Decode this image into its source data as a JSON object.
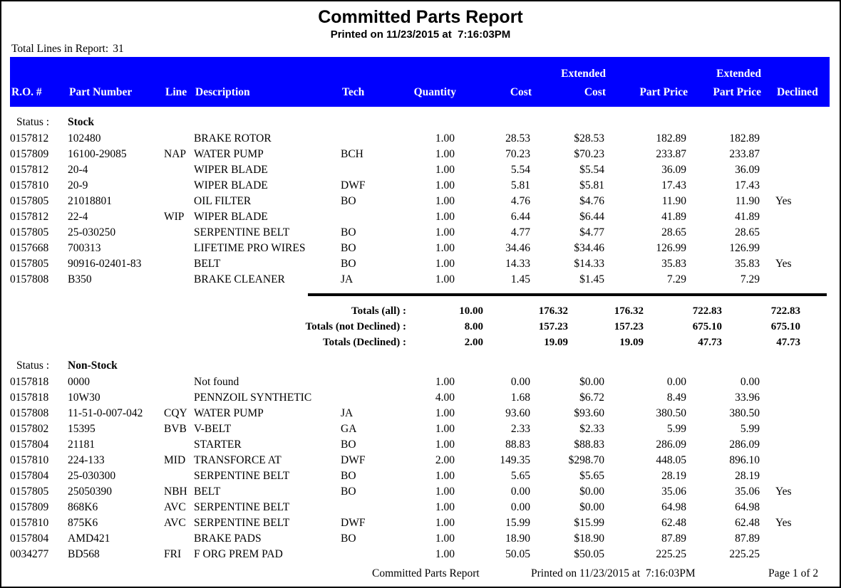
{
  "header": {
    "title": "Committed Parts Report",
    "printed": "Printed on 11/23/2015 at  7:16:03PM",
    "total_lines_label": "Total Lines in Report:",
    "total_lines_value": "31"
  },
  "colors": {
    "header_bar": "#0000ff",
    "header_text": "#ffffff"
  },
  "columns": {
    "extended": "Extended",
    "ro": "R.O. #",
    "part": "Part Number",
    "line": "Line",
    "desc": "Description",
    "tech": "Tech",
    "qty": "Quantity",
    "cost": "Cost",
    "ext_cost": "Cost",
    "price": "Part Price",
    "ext_price": "Part Price",
    "declined": "Declined"
  },
  "sections": [
    {
      "status_label": "Status :",
      "status": "Stock",
      "rows": [
        [
          "0157812",
          "102480",
          "",
          "BRAKE ROTOR",
          "",
          "1.00",
          "28.53",
          "$28.53",
          "182.89",
          "182.89",
          ""
        ],
        [
          "0157809",
          "16100-29085",
          "NAP",
          "WATER PUMP",
          "BCH",
          "1.00",
          "70.23",
          "$70.23",
          "233.87",
          "233.87",
          ""
        ],
        [
          "0157812",
          "20-4",
          "",
          "WIPER BLADE",
          "",
          "1.00",
          "5.54",
          "$5.54",
          "36.09",
          "36.09",
          ""
        ],
        [
          "0157810",
          "20-9",
          "",
          "WIPER BLADE",
          "DWF",
          "1.00",
          "5.81",
          "$5.81",
          "17.43",
          "17.43",
          ""
        ],
        [
          "0157805",
          "21018801",
          "",
          "OIL FILTER",
          "BO",
          "1.00",
          "4.76",
          "$4.76",
          "11.90",
          "11.90",
          "Yes"
        ],
        [
          "0157812",
          "22-4",
          "WIP",
          "WIPER BLADE",
          "",
          "1.00",
          "6.44",
          "$6.44",
          "41.89",
          "41.89",
          ""
        ],
        [
          "0157805",
          "25-030250",
          "",
          "SERPENTINE BELT",
          "BO",
          "1.00",
          "4.77",
          "$4.77",
          "28.65",
          "28.65",
          ""
        ],
        [
          "0157668",
          "700313",
          "",
          "LIFETIME PRO WIRES",
          "BO",
          "1.00",
          "34.46",
          "$34.46",
          "126.99",
          "126.99",
          ""
        ],
        [
          "0157805",
          "90916-02401-83",
          "",
          "BELT",
          "BO",
          "1.00",
          "14.33",
          "$14.33",
          "35.83",
          "35.83",
          "Yes"
        ],
        [
          "0157808",
          "B350",
          "",
          "BRAKE CLEANER",
          "JA",
          "1.00",
          "1.45",
          "$1.45",
          "7.29",
          "7.29",
          ""
        ]
      ],
      "totals": [
        [
          "Totals (all) :",
          "10.00",
          "176.32",
          "176.32",
          "722.83",
          "722.83"
        ],
        [
          "Totals (not Declined) :",
          "8.00",
          "157.23",
          "157.23",
          "675.10",
          "675.10"
        ],
        [
          "Totals (Declined) :",
          "2.00",
          "19.09",
          "19.09",
          "47.73",
          "47.73"
        ]
      ]
    },
    {
      "status_label": "Status :",
      "status": "Non-Stock",
      "rows": [
        [
          "0157818",
          "0000",
          "",
          "Not found",
          "",
          "1.00",
          "0.00",
          "$0.00",
          "0.00",
          "0.00",
          ""
        ],
        [
          "0157818",
          "10W30",
          "",
          "PENNZOIL SYNTHETIC",
          "",
          "4.00",
          "1.68",
          "$6.72",
          "8.49",
          "33.96",
          ""
        ],
        [
          "0157808",
          "11-51-0-007-042",
          "CQY",
          "WATER PUMP",
          "JA",
          "1.00",
          "93.60",
          "$93.60",
          "380.50",
          "380.50",
          ""
        ],
        [
          "0157802",
          "15395",
          "BVB",
          "V-BELT",
          "GA",
          "1.00",
          "2.33",
          "$2.33",
          "5.99",
          "5.99",
          ""
        ],
        [
          "0157804",
          "21181",
          "",
          "STARTER",
          "BO",
          "1.00",
          "88.83",
          "$88.83",
          "286.09",
          "286.09",
          ""
        ],
        [
          "0157810",
          "224-133",
          "MID",
          "TRANSFORCE AT",
          "DWF",
          "2.00",
          "149.35",
          "$298.70",
          "448.05",
          "896.10",
          ""
        ],
        [
          "0157804",
          "25-030300",
          "",
          "SERPENTINE BELT",
          "BO",
          "1.00",
          "5.65",
          "$5.65",
          "28.19",
          "28.19",
          ""
        ],
        [
          "0157805",
          "25050390",
          "NBH",
          "BELT",
          "BO",
          "1.00",
          "0.00",
          "$0.00",
          "35.06",
          "35.06",
          "Yes"
        ],
        [
          "0157809",
          "868K6",
          "AVC",
          "SERPENTINE BELT",
          "",
          "1.00",
          "0.00",
          "$0.00",
          "64.98",
          "64.98",
          ""
        ],
        [
          "0157810",
          "875K6",
          "AVC",
          "SERPENTINE BELT",
          "DWF",
          "1.00",
          "15.99",
          "$15.99",
          "62.48",
          "62.48",
          "Yes"
        ],
        [
          "0157804",
          "AMD421",
          "",
          "BRAKE PADS",
          "BO",
          "1.00",
          "18.90",
          "$18.90",
          "87.89",
          "87.89",
          ""
        ],
        [
          "0034277",
          "BD568",
          "FRI",
          "F ORG PREM PAD",
          "",
          "1.00",
          "50.05",
          "$50.05",
          "225.25",
          "225.25",
          ""
        ]
      ]
    }
  ],
  "footer": {
    "report_name": "Committed Parts Report",
    "printed": "Printed on 11/23/2015 at  7:16:03PM",
    "page": "Page 1 of 2"
  }
}
